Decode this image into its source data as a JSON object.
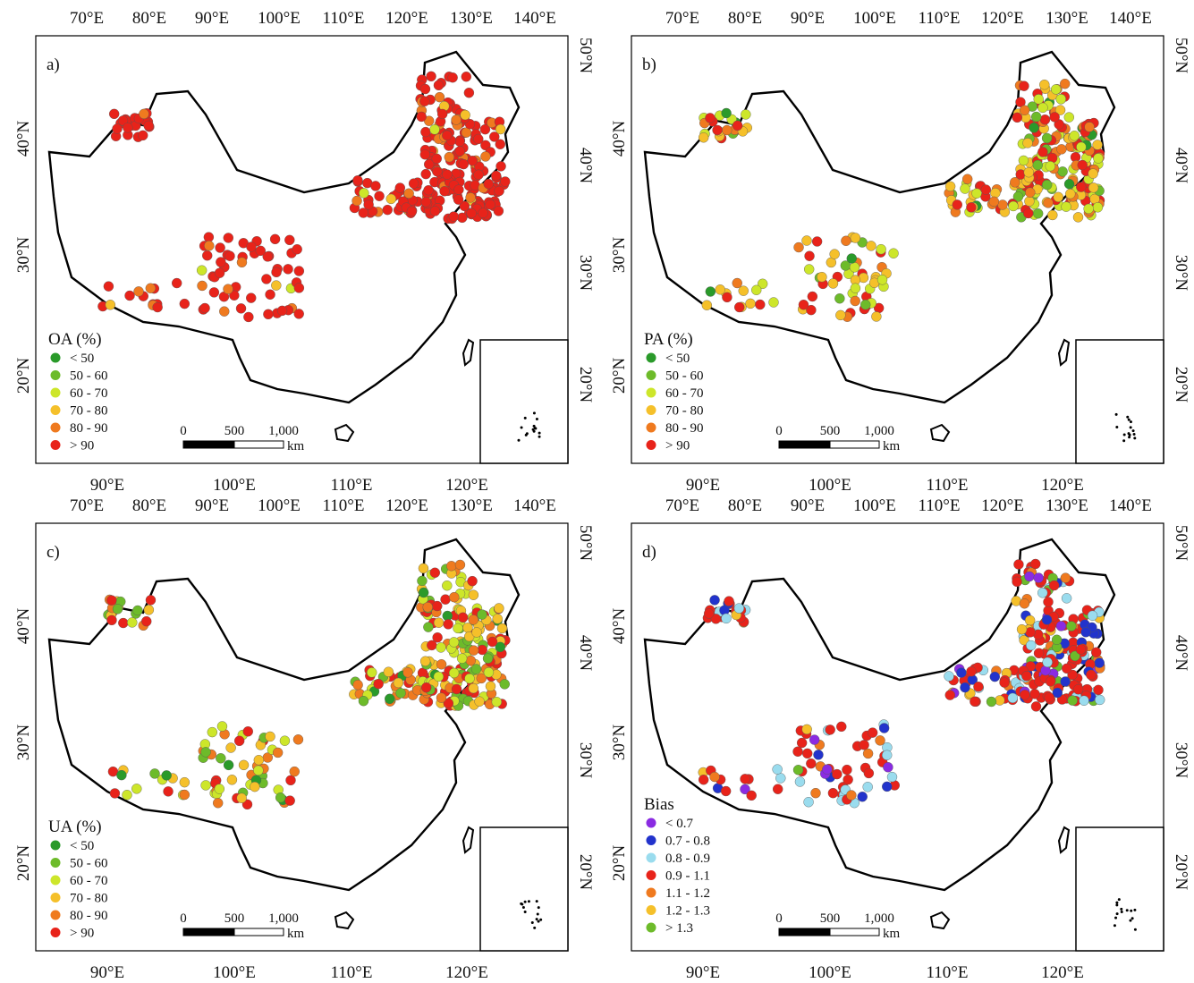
{
  "axes": {
    "top": [
      "70°E",
      "80°E",
      "90°E",
      "100°E",
      "110°E",
      "120°E",
      "130°E",
      "140°E"
    ],
    "bottom": [
      "90°E",
      "100°E",
      "110°E",
      "120°E"
    ],
    "left": [
      "40°N",
      "30°N",
      "20°N"
    ],
    "right": [
      "50°N",
      "40°N",
      "30°N",
      "20°N"
    ]
  },
  "scale_bar": {
    "ticks": [
      "0",
      "500",
      "1,000"
    ],
    "unit": "km"
  },
  "panels": [
    {
      "label": "a)",
      "legend_title": "OA (%)",
      "legend": [
        {
          "label": "< 50",
          "color": "#2a9a2a"
        },
        {
          "label": "50 - 60",
          "color": "#6dbb2a"
        },
        {
          "label": "60 - 70",
          "color": "#cde62a"
        },
        {
          "label": "70 - 80",
          "color": "#f5c02a"
        },
        {
          "label": "80 - 90",
          "color": "#ef7a1f"
        },
        {
          "label": "> 90",
          "color": "#e8231a"
        }
      ]
    },
    {
      "label": "b)",
      "legend_title": "PA (%)",
      "legend": [
        {
          "label": "< 50",
          "color": "#2a9a2a"
        },
        {
          "label": "50 - 60",
          "color": "#6dbb2a"
        },
        {
          "label": "60 - 70",
          "color": "#cde62a"
        },
        {
          "label": "70 - 80",
          "color": "#f5c02a"
        },
        {
          "label": "80 - 90",
          "color": "#ef7a1f"
        },
        {
          "label": "> 90",
          "color": "#e8231a"
        }
      ]
    },
    {
      "label": "c)",
      "legend_title": "UA (%)",
      "legend": [
        {
          "label": "< 50",
          "color": "#2a9a2a"
        },
        {
          "label": "50 - 60",
          "color": "#6dbb2a"
        },
        {
          "label": "60 - 70",
          "color": "#cde62a"
        },
        {
          "label": "70 - 80",
          "color": "#f5c02a"
        },
        {
          "label": "80 - 90",
          "color": "#ef7a1f"
        },
        {
          "label": "> 90",
          "color": "#e8231a"
        }
      ]
    },
    {
      "label": "d)",
      "legend_title": "Bias",
      "legend": [
        {
          "label": "< 0.7",
          "color": "#8a2be2"
        },
        {
          "label": "0.7 - 0.8",
          "color": "#2233cc"
        },
        {
          "label": "0.8 - 0.9",
          "color": "#9adcee"
        },
        {
          "label": "0.9 - 1.1",
          "color": "#e8231a"
        },
        {
          "label": "1.1 - 1.2",
          "color": "#ef7a1f"
        },
        {
          "label": "1.2 - 1.3",
          "color": "#f5c02a"
        },
        {
          "label": "> 1.3",
          "color": "#6dbb2a"
        }
      ]
    }
  ]
}
